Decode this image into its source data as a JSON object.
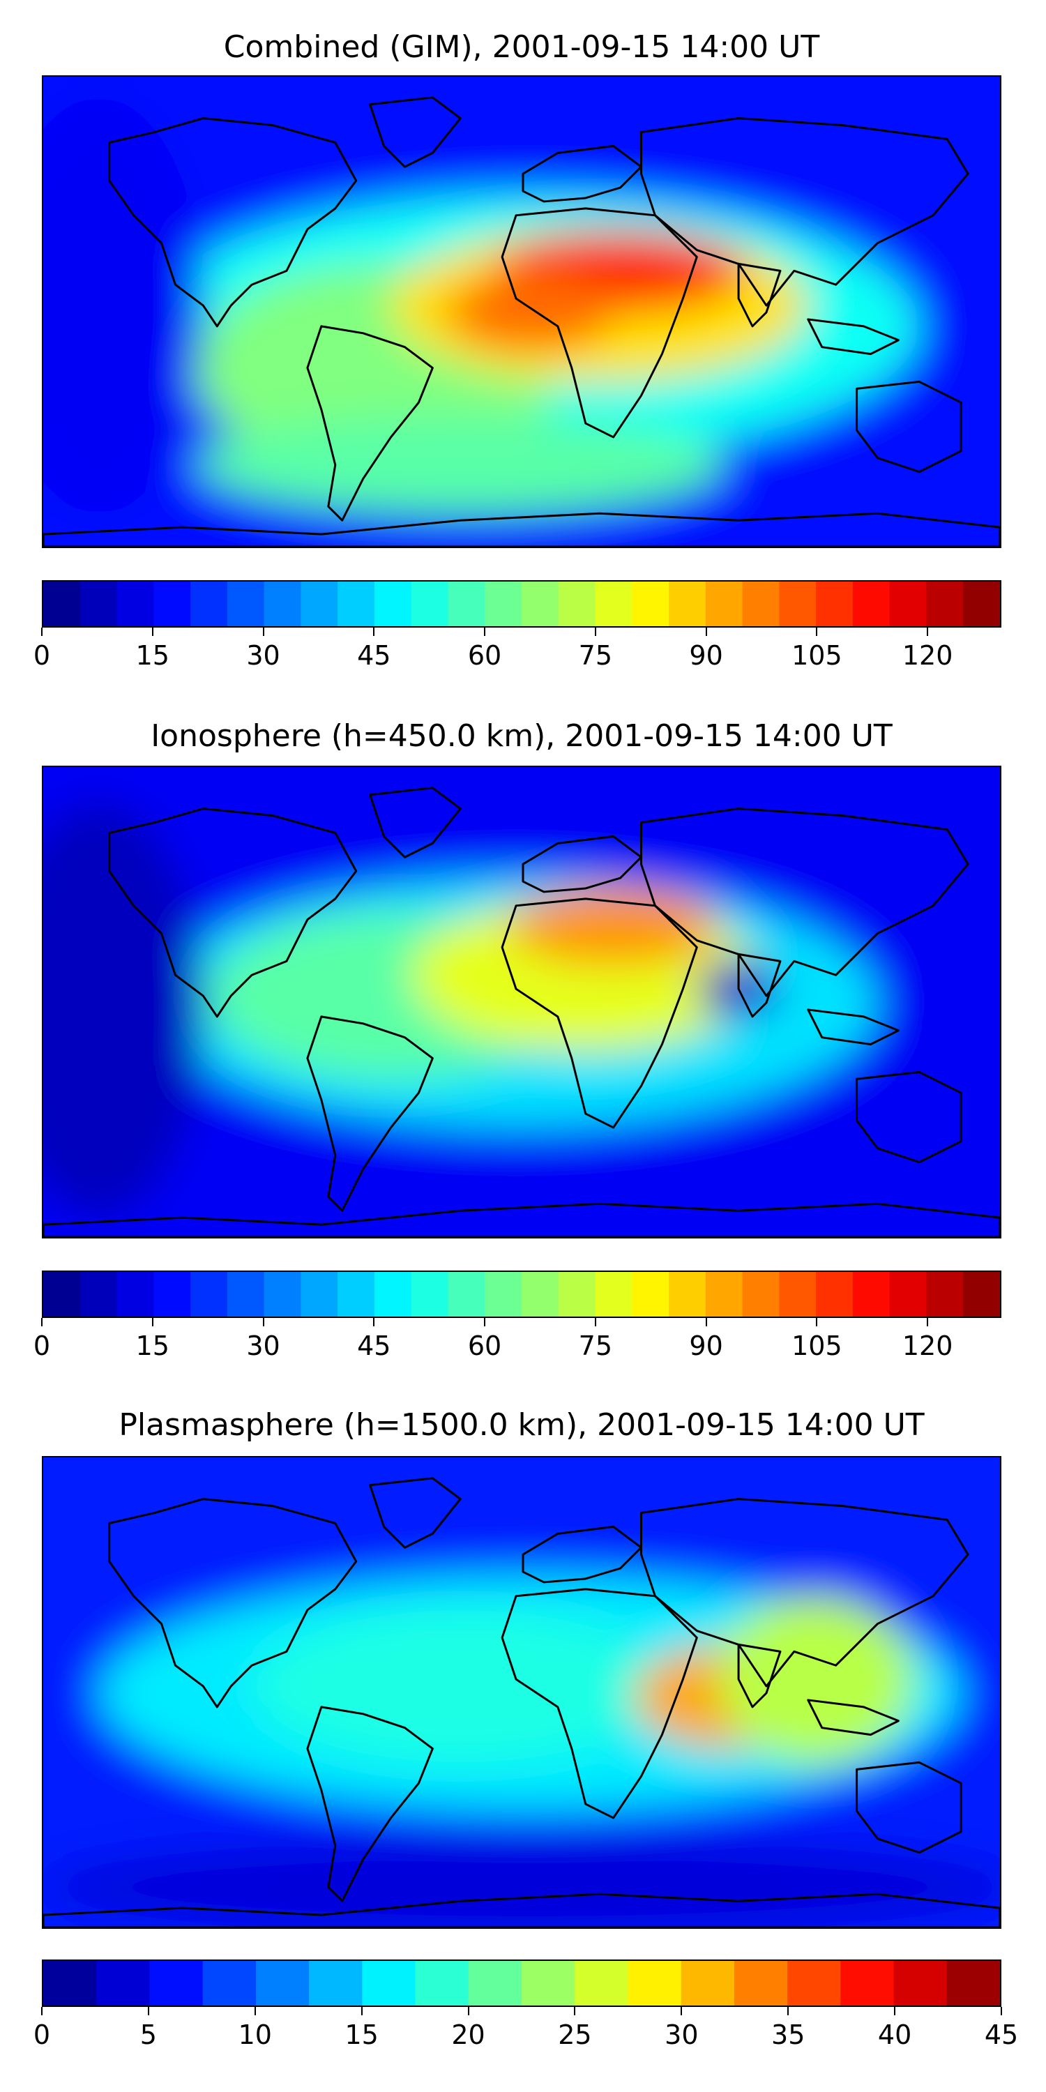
{
  "chart_data": [
    {
      "type": "heatmap",
      "id": "gim",
      "title": "Combined (GIM), 2001-09-15 14:00 UT",
      "colormap": "jet",
      "clim": [
        0,
        130
      ],
      "levels": 26,
      "colorbar_ticks": [
        0,
        15,
        30,
        45,
        60,
        75,
        90,
        105,
        120
      ],
      "colorbar_tick_labels": [
        "0",
        "15",
        "30",
        "45",
        "60",
        "75",
        "90",
        "105",
        "120"
      ],
      "features": [
        {
          "region": "background",
          "value": 18
        },
        {
          "region": "equatorial band",
          "value": 50
        },
        {
          "region": "tropical Americas / Atlantic",
          "value": 65
        },
        {
          "region": "Africa",
          "value": 85
        },
        {
          "region": "North Africa / Arabia peak",
          "value": 108
        },
        {
          "region": "Central Africa",
          "value": 100
        },
        {
          "region": "Southern mid-latitudes",
          "value": 60
        },
        {
          "region": "Pacific",
          "value": 15
        }
      ]
    },
    {
      "type": "heatmap",
      "id": "ionosphere",
      "title": "Ionosphere  (h=450.0 km), 2001-09-15 14:00 UT",
      "colormap": "jet",
      "clim": [
        0,
        130
      ],
      "levels": 26,
      "colorbar_ticks": [
        0,
        15,
        30,
        45,
        60,
        75,
        90,
        105,
        120
      ],
      "colorbar_tick_labels": [
        "0",
        "15",
        "30",
        "45",
        "60",
        "75",
        "90",
        "105",
        "120"
      ],
      "features": [
        {
          "region": "background",
          "value": 15
        },
        {
          "region": "equatorial band",
          "value": 45
        },
        {
          "region": "Americas / Atlantic",
          "value": 60
        },
        {
          "region": "Africa",
          "value": 78
        },
        {
          "region": "North Africa / Arabia peak",
          "value": 95
        },
        {
          "region": "Indian Ocean minimum",
          "value": 10
        },
        {
          "region": "Pacific",
          "value": 8
        }
      ]
    },
    {
      "type": "heatmap",
      "id": "plasmasphere",
      "title": "Plasmasphere (h=1500.0 km), 2001-09-15 14:00 UT",
      "colormap": "jet",
      "clim": [
        0,
        45
      ],
      "levels": 18,
      "colorbar_ticks": [
        0,
        5,
        10,
        15,
        20,
        25,
        30,
        35,
        40,
        45
      ],
      "colorbar_tick_labels": [
        "0",
        "5",
        "10",
        "15",
        "20",
        "25",
        "30",
        "35",
        "40",
        "45"
      ],
      "features": [
        {
          "region": "background",
          "value": 7
        },
        {
          "region": "equatorial band",
          "value": 16
        },
        {
          "region": "Atlantic / Africa",
          "value": 18
        },
        {
          "region": "Indian Ocean peak",
          "value": 32
        },
        {
          "region": "Maritime Continent",
          "value": 25
        },
        {
          "region": "high latitudes",
          "value": 4
        }
      ]
    }
  ]
}
